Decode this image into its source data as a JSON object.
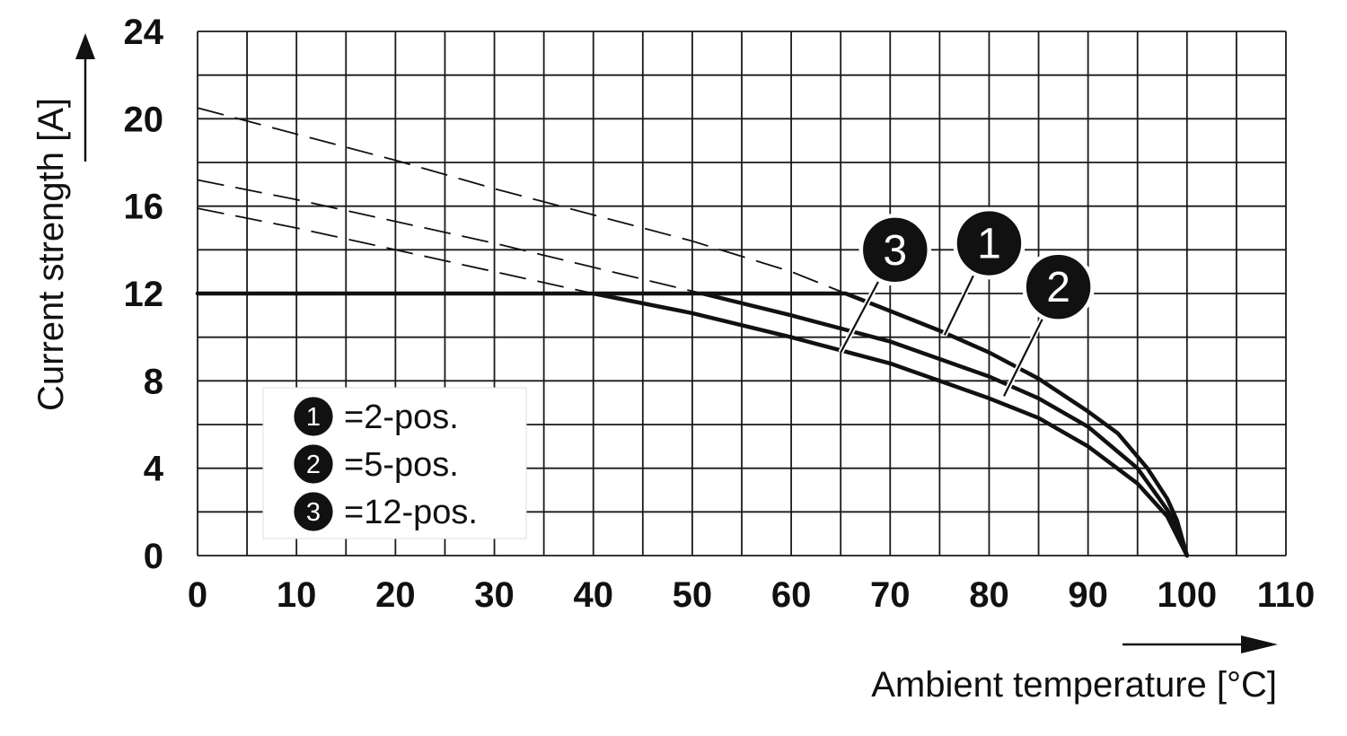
{
  "chart_data": {
    "type": "line",
    "xlabel": "Ambient temperature [°C]",
    "ylabel": "Current strength [A]",
    "xlim": [
      0,
      110
    ],
    "ylim": [
      0,
      24
    ],
    "x_ticks": [
      0,
      10,
      20,
      30,
      40,
      50,
      60,
      70,
      80,
      90,
      100,
      110
    ],
    "y_ticks": [
      0,
      4,
      8,
      12,
      16,
      20,
      24
    ],
    "grid": true,
    "grid_x_step": 5,
    "grid_y_step": 2,
    "legend_position": "bottom-left",
    "legend": [
      {
        "id": "1",
        "label": "=2-pos."
      },
      {
        "id": "2",
        "label": "=5-pos."
      },
      {
        "id": "3",
        "label": "=12-pos."
      }
    ],
    "series": [
      {
        "id": "1",
        "name": "2-pos.",
        "derating_solid": [
          [
            0,
            12
          ],
          [
            65.5,
            12
          ],
          [
            70,
            11.2
          ],
          [
            75,
            10.3
          ],
          [
            80,
            9.3
          ],
          [
            85,
            8.1
          ],
          [
            90,
            6.6
          ],
          [
            93,
            5.6
          ],
          [
            96,
            4.0
          ],
          [
            98,
            2.6
          ],
          [
            99,
            1.6
          ],
          [
            100,
            0
          ]
        ],
        "extension_dashed": [
          [
            0,
            20.5
          ],
          [
            10,
            19.3
          ],
          [
            20,
            18.1
          ],
          [
            30,
            16.8
          ],
          [
            40,
            15.6
          ],
          [
            50,
            14.4
          ],
          [
            60,
            13.0
          ],
          [
            65.5,
            12
          ]
        ]
      },
      {
        "id": "2",
        "name": "5-pos.",
        "derating_solid": [
          [
            51,
            12
          ],
          [
            60,
            11.0
          ],
          [
            70,
            9.8
          ],
          [
            80,
            8.2
          ],
          [
            85,
            7.2
          ],
          [
            90,
            5.9
          ],
          [
            95,
            4.0
          ],
          [
            98,
            2.1
          ],
          [
            99,
            1.3
          ],
          [
            100,
            0
          ]
        ],
        "extension_dashed": [
          [
            0,
            17.2
          ],
          [
            10,
            16.3
          ],
          [
            20,
            15.3
          ],
          [
            30,
            14.3
          ],
          [
            40,
            13.2
          ],
          [
            51,
            12
          ]
        ]
      },
      {
        "id": "3",
        "name": "12-pos.",
        "derating_solid": [
          [
            40,
            12
          ],
          [
            50,
            11.1
          ],
          [
            60,
            10.0
          ],
          [
            70,
            8.8
          ],
          [
            80,
            7.2
          ],
          [
            85,
            6.3
          ],
          [
            90,
            5.0
          ],
          [
            95,
            3.3
          ],
          [
            98,
            1.8
          ],
          [
            100,
            0
          ]
        ],
        "extension_dashed": [
          [
            0,
            15.9
          ],
          [
            10,
            15.0
          ],
          [
            20,
            14.0
          ],
          [
            30,
            13.0
          ],
          [
            40,
            12
          ]
        ]
      }
    ],
    "callouts": [
      {
        "id": "3",
        "badge_at": [
          70.5,
          14
        ],
        "points_to": [
          65,
          9.3
        ]
      },
      {
        "id": "1",
        "badge_at": [
          80,
          14.3
        ],
        "points_to": [
          75.5,
          10.1
        ]
      },
      {
        "id": "2",
        "badge_at": [
          87,
          12.3
        ],
        "points_to": [
          81.5,
          7.3
        ]
      }
    ]
  }
}
